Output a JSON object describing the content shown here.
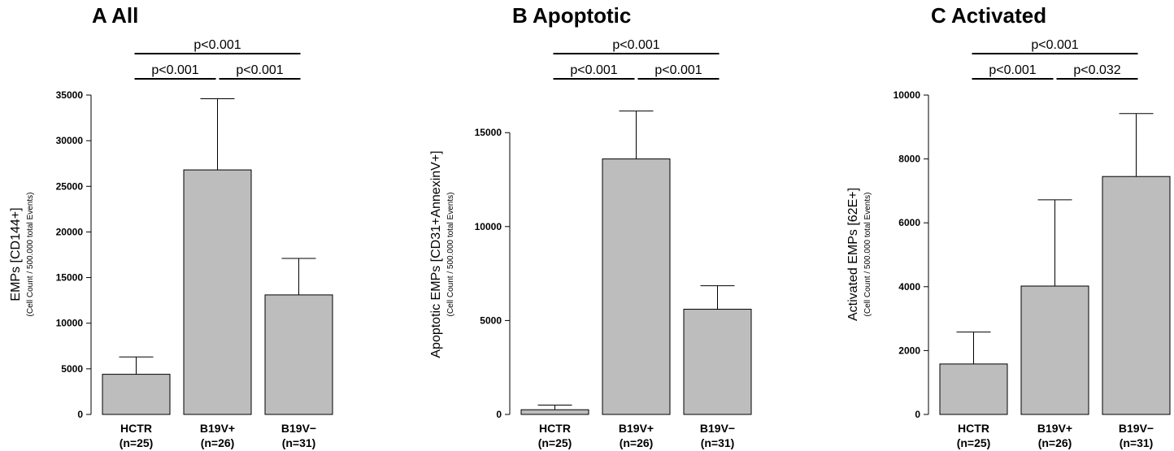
{
  "chart_data": [
    {
      "type": "bar",
      "title": "A All",
      "ylabel": "EMPs [CD144+]",
      "ylabel_sub": "(Cell Count / 500.000 total Events)",
      "categories": [
        "HCTR",
        "B19V+",
        "B19V−"
      ],
      "category_n": [
        "(n=25)",
        "(n=26)",
        "(n=31)"
      ],
      "values": [
        4400,
        26800,
        13100
      ],
      "error_upper": [
        6300,
        34600,
        17100
      ],
      "ylim": [
        0,
        35000
      ],
      "yticks": [
        0,
        5000,
        10000,
        15000,
        20000,
        25000,
        30000,
        35000
      ],
      "significance": [
        {
          "from": 0,
          "to": 2,
          "label": "p<0.001",
          "level": 2
        },
        {
          "from": 0,
          "to": 1,
          "label": "p<0.001",
          "level": 1
        },
        {
          "from": 1,
          "to": 2,
          "label": "p<0.001",
          "level": 1
        }
      ],
      "bar_color": "#bdbdbd"
    },
    {
      "type": "bar",
      "title": "B Apoptotic",
      "ylabel": "Apoptotic EMPs [CD31+AnnexinV+]",
      "ylabel_sub": "(Cell Count / 500.000 total Events)",
      "categories": [
        "HCTR",
        "B19V+",
        "B19V−"
      ],
      "category_n": [
        "(n=25)",
        "(n=26)",
        "(n=31)"
      ],
      "values": [
        250,
        13600,
        5600
      ],
      "error_upper": [
        500,
        16150,
        6850
      ],
      "ylim": [
        0,
        17000
      ],
      "yticks": [
        0,
        5000,
        10000,
        15000
      ],
      "significance": [
        {
          "from": 0,
          "to": 2,
          "label": "p<0.001",
          "level": 2
        },
        {
          "from": 0,
          "to": 1,
          "label": "p<0.001",
          "level": 1
        },
        {
          "from": 1,
          "to": 2,
          "label": "p<0.001",
          "level": 1
        }
      ],
      "bar_color": "#bdbdbd"
    },
    {
      "type": "bar",
      "title": "C Activated",
      "ylabel": "Activated EMPs [62E+]",
      "ylabel_sub": "(Cell Count / 500.000 total Events)",
      "categories": [
        "HCTR",
        "B19V+",
        "B19V−"
      ],
      "category_n": [
        "(n=25)",
        "(n=26)",
        "(n=31)"
      ],
      "values": [
        1580,
        4020,
        7450
      ],
      "error_upper": [
        2580,
        6720,
        9420
      ],
      "ylim": [
        0,
        10000
      ],
      "yticks": [
        0,
        2000,
        4000,
        6000,
        8000,
        10000
      ],
      "significance": [
        {
          "from": 0,
          "to": 2,
          "label": "p<0.001",
          "level": 2
        },
        {
          "from": 0,
          "to": 1,
          "label": "p<0.001",
          "level": 1
        },
        {
          "from": 1,
          "to": 2,
          "label": "p<0.032",
          "level": 1
        }
      ],
      "bar_color": "#bdbdbd"
    }
  ]
}
